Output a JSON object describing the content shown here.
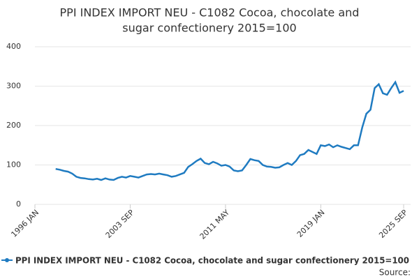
{
  "chart_data": {
    "type": "line",
    "title": [
      "PPI INDEX IMPORT NEU - C1082 Cocoa, chocolate and",
      "sugar confectionery 2015=100"
    ],
    "categories": [
      "1996 JAN",
      "1996 MAY",
      "1996 SEP",
      "1997 JAN",
      "1997 MAY",
      "1997 SEP",
      "1998 JAN",
      "1998 MAY",
      "1998 SEP",
      "1999 JAN",
      "1999 MAY",
      "1999 SEP",
      "2000 JAN",
      "2000 MAY",
      "2000 SEP",
      "2001 JAN",
      "2001 MAY",
      "2001 SEP",
      "2002 JAN",
      "2002 MAY",
      "2002 SEP",
      "2003 JAN",
      "2003 MAY",
      "2003 SEP",
      "2004 JAN",
      "2004 MAY",
      "2004 SEP",
      "2005 JAN",
      "2005 MAY",
      "2005 SEP",
      "2006 JAN",
      "2006 MAY",
      "2006 SEP",
      "2007 JAN",
      "2007 MAY",
      "2007 SEP",
      "2008 JAN",
      "2008 MAY",
      "2008 SEP",
      "2009 JAN",
      "2009 MAY",
      "2009 SEP",
      "2010 JAN",
      "2010 MAY",
      "2010 SEP",
      "2011 JAN",
      "2011 MAY",
      "2011 SEP",
      "2012 JAN",
      "2012 MAY",
      "2012 SEP",
      "2013 JAN",
      "2013 MAY",
      "2013 SEP",
      "2014 JAN",
      "2014 MAY",
      "2014 SEP",
      "2015 JAN",
      "2015 MAY",
      "2015 SEP",
      "2016 JAN",
      "2016 MAY",
      "2016 SEP",
      "2017 JAN",
      "2017 MAY",
      "2017 SEP",
      "2018 JAN",
      "2018 MAY",
      "2018 SEP",
      "2019 JAN",
      "2019 MAY",
      "2019 SEP",
      "2020 JAN",
      "2020 MAY",
      "2020 SEP",
      "2021 JAN",
      "2021 MAY",
      "2021 SEP",
      "2022 JAN",
      "2022 MAY",
      "2022 SEP",
      "2023 JAN",
      "2023 MAY",
      "2023 SEP",
      "2024 JAN",
      "2024 MAY",
      "2024 SEP",
      "2025 JAN",
      "2025 MAY",
      "2025 SEP"
    ],
    "xticks": [
      "1996 JAN",
      "2003 SEP",
      "2011 MAY",
      "2019 JAN",
      "2025 SEP"
    ],
    "series": [
      {
        "name": "PPI INDEX IMPORT NEU - C1082 Cocoa, chocolate and sugar confectionery 2015=100",
        "color": "#1f7bc1",
        "values": [
          null,
          null,
          null,
          null,
          null,
          90,
          88,
          85,
          83,
          78,
          70,
          67,
          66,
          64,
          63,
          65,
          62,
          66,
          63,
          62,
          67,
          70,
          68,
          72,
          70,
          68,
          72,
          76,
          77,
          76,
          78,
          76,
          74,
          70,
          72,
          76,
          80,
          95,
          102,
          110,
          116,
          105,
          102,
          108,
          104,
          98,
          100,
          96,
          86,
          84,
          86,
          100,
          115,
          112,
          110,
          100,
          96,
          95,
          93,
          94,
          100,
          105,
          100,
          110,
          125,
          128,
          138,
          133,
          128,
          150,
          148,
          152,
          145,
          150,
          146,
          143,
          140,
          150,
          150,
          195,
          230,
          240,
          295,
          305,
          282,
          278,
          295,
          310,
          283,
          288
        ]
      }
    ],
    "ylim": [
      0,
      400
    ],
    "yticks": [
      0,
      100,
      200,
      300,
      400
    ],
    "grid": true,
    "source": "Source:"
  }
}
